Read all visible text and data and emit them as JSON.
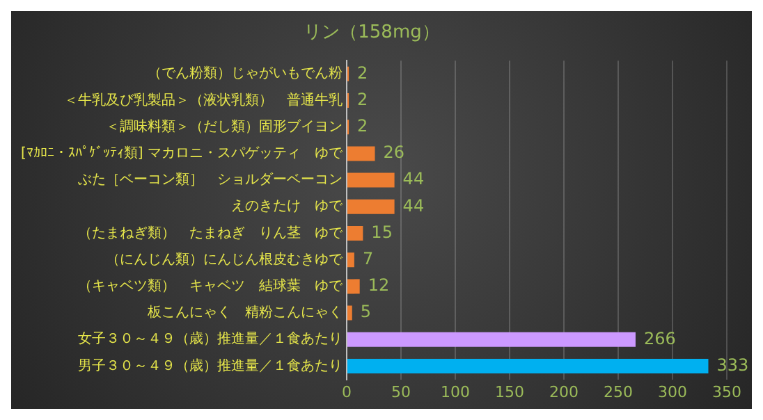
{
  "chart_data": {
    "type": "bar",
    "orientation": "horizontal",
    "title": "リン（158mg）",
    "categories": [
      "（でん粉類）じゃがいもでん粉",
      "＜牛乳及び乳製品＞（液状乳類）　普通牛乳",
      "＜調味料類＞（だし類）固形ブイヨン",
      "[ﾏｶﾛﾆ・ｽﾊﾟｹﾞｯﾃｨ類] マカロニ・スパゲッティ　ゆで",
      "ぶた［ベーコン類］　ショルダーベーコン",
      "えのきたけ　ゆで",
      "（たまねぎ類）　たまねぎ　りん茎　ゆで",
      "（にんじん類）にんじん根皮むきゆで",
      "（キャベツ類）　キャベツ　結球葉　ゆで",
      "板こんにゃく　精粉こんにゃく",
      "女子３０～４９（歳）推進量／１食あたり",
      "男子３０～４９（歳）推進量／１食あたり"
    ],
    "values": [
      2,
      2,
      2,
      26,
      44,
      44,
      15,
      7,
      12,
      5,
      266,
      333
    ],
    "colors": [
      "#ed7d31",
      "#ed7d31",
      "#ed7d31",
      "#ed7d31",
      "#ed7d31",
      "#ed7d31",
      "#ed7d31",
      "#ed7d31",
      "#ed7d31",
      "#ed7d31",
      "#cc99ff",
      "#00b0f0"
    ],
    "xlim": [
      0,
      350
    ],
    "xticks": [
      0,
      50,
      100,
      150,
      200,
      250,
      300,
      350
    ],
    "grid": "x",
    "data_labels": true
  }
}
